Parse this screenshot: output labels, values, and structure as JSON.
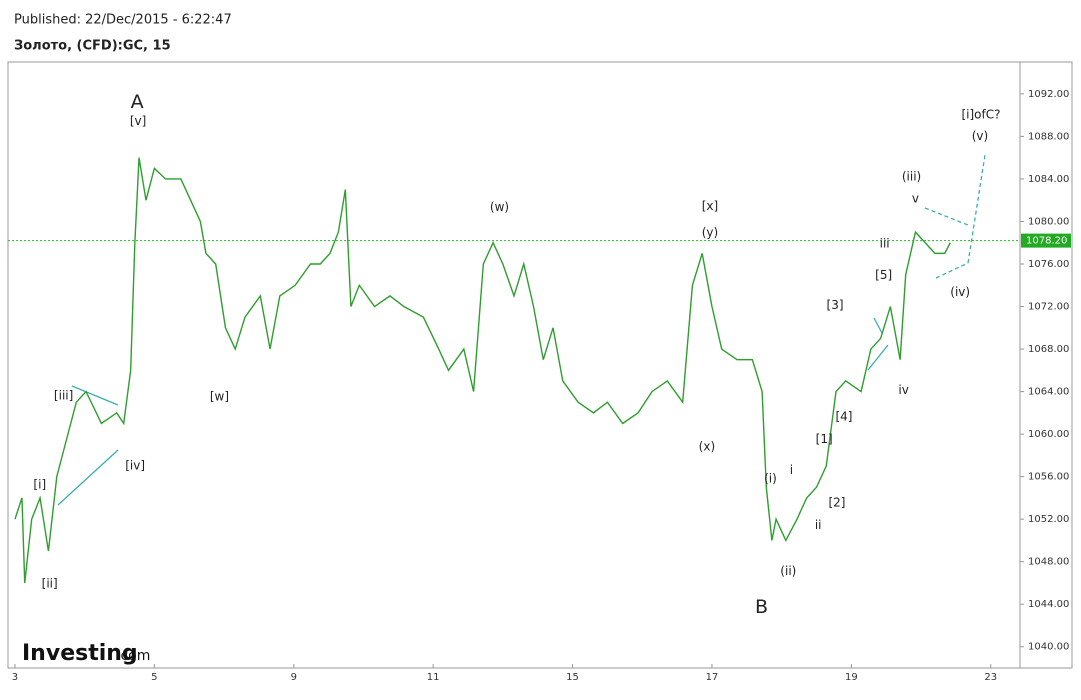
{
  "chart_data": {
    "type": "line",
    "published": "Published: 22/Dec/2015 - 6:22:47",
    "title": "Золото, (CFD):GC, 15",
    "logo": {
      "brand": "Investing",
      "suffix": ".com"
    },
    "xlim": [
      -0.05,
      7.21
    ],
    "xticks": [
      {
        "value": 0,
        "label": "3"
      },
      {
        "value": 1,
        "label": "5"
      },
      {
        "value": 2,
        "label": "9"
      },
      {
        "value": 3,
        "label": "11"
      },
      {
        "value": 4,
        "label": "15"
      },
      {
        "value": 5,
        "label": "17"
      },
      {
        "value": 6,
        "label": "19"
      },
      {
        "value": 7,
        "label": "23"
      }
    ],
    "ylim": [
      1038,
      1095
    ],
    "yticks": [
      {
        "value": 1040,
        "label": "1040.00"
      },
      {
        "value": 1044,
        "label": "1044.00"
      },
      {
        "value": 1048,
        "label": "1048.00"
      },
      {
        "value": 1052,
        "label": "1052.00"
      },
      {
        "value": 1056,
        "label": "1056.00"
      },
      {
        "value": 1060,
        "label": "1060.00"
      },
      {
        "value": 1064,
        "label": "1064.00"
      },
      {
        "value": 1068,
        "label": "1068.00"
      },
      {
        "value": 1072,
        "label": "1072.00"
      },
      {
        "value": 1076,
        "label": "1076.00"
      },
      {
        "value": 1080,
        "label": "1080.00"
      },
      {
        "value": 1084,
        "label": "1084.00"
      },
      {
        "value": 1088,
        "label": "1088.00"
      },
      {
        "value": 1092,
        "label": "1092.00"
      }
    ],
    "last_price": {
      "value": 1078.2,
      "label": "1078.20"
    },
    "series": [
      {
        "color": "#2e9e2e",
        "x": [
          0,
          0.05,
          0.07,
          0.12,
          0.18,
          0.24,
          0.3,
          0.34,
          0.44,
          0.51,
          0.62,
          0.73,
          0.78,
          0.83,
          0.86,
          0.89,
          0.94,
          1.0,
          1.08,
          1.19,
          1.26,
          1.33,
          1.37,
          1.44,
          1.51,
          1.58,
          1.65,
          1.76,
          1.83,
          1.9,
          2.01,
          2.12,
          2.19,
          2.26,
          2.32,
          2.37,
          2.41,
          2.47,
          2.58,
          2.69,
          2.79,
          2.93,
          3.04,
          3.11,
          3.22,
          3.29,
          3.36,
          3.43,
          3.5,
          3.58,
          3.65,
          3.72,
          3.79,
          3.86,
          3.93,
          4.04,
          4.15,
          4.25,
          4.36,
          4.47,
          4.57,
          4.68,
          4.79,
          4.86,
          4.93,
          5.0,
          5.07,
          5.18,
          5.29,
          5.36,
          5.39,
          5.43,
          5.46,
          5.53,
          5.61,
          5.68,
          5.75,
          5.82,
          5.89,
          5.96,
          6.07,
          6.14,
          6.21,
          6.28,
          6.35,
          6.39,
          6.46,
          6.53,
          6.6,
          6.67,
          6.71
        ],
        "values": [
          1052,
          1054,
          1046,
          1052,
          1054,
          1049,
          1056,
          1058,
          1063,
          1064,
          1061,
          1062,
          1061,
          1066,
          1078,
          1086,
          1082,
          1085,
          1084,
          1084,
          1082,
          1080,
          1077,
          1076,
          1070,
          1068,
          1071,
          1073,
          1068,
          1073,
          1074,
          1076,
          1076,
          1077,
          1079,
          1083,
          1072,
          1074,
          1072,
          1073,
          1072,
          1071,
          1068,
          1066,
          1068,
          1064,
          1076,
          1078,
          1076,
          1073,
          1076,
          1072,
          1067,
          1070,
          1065,
          1063,
          1062,
          1063,
          1061,
          1062,
          1064,
          1065,
          1063,
          1074,
          1077,
          1072,
          1068,
          1067,
          1067,
          1064,
          1055,
          1050,
          1052,
          1050,
          1052,
          1054,
          1055,
          1057,
          1064,
          1065,
          1064,
          1068,
          1069,
          1072,
          1067,
          1075,
          1079,
          1078,
          1077,
          1077,
          1078
        ]
      }
    ],
    "annotations": [
      {
        "text": "A",
        "x": 0.876,
        "y": 1091.2,
        "big": true
      },
      {
        "text": "[v]",
        "x": 0.883,
        "y": 1089.4
      },
      {
        "text": "[iii]",
        "x": 0.349,
        "y": 1063.6
      },
      {
        "text": "[i]",
        "x": 0.178,
        "y": 1055.2
      },
      {
        "text": "[ii]",
        "x": 0.249,
        "y": 1045.9
      },
      {
        "text": "[iv]",
        "x": 0.862,
        "y": 1057
      },
      {
        "text": "[w]",
        "x": 1.467,
        "y": 1063.5
      },
      {
        "text": "(w)",
        "x": 3.476,
        "y": 1081.3
      },
      {
        "text": "[x]",
        "x": 4.986,
        "y": 1081.4
      },
      {
        "text": "(y)",
        "x": 4.986,
        "y": 1078.9
      },
      {
        "text": "(x)",
        "x": 4.964,
        "y": 1058.8
      },
      {
        "text": "B",
        "x": 5.356,
        "y": 1043.7,
        "big": true
      },
      {
        "text": "(i)",
        "x": 5.42,
        "y": 1055.8
      },
      {
        "text": "i",
        "x": 5.57,
        "y": 1056.6
      },
      {
        "text": "ii",
        "x": 5.762,
        "y": 1051.4
      },
      {
        "text": "(ii)",
        "x": 5.548,
        "y": 1047.1
      },
      {
        "text": "[1]",
        "x": 5.805,
        "y": 1059.5
      },
      {
        "text": "[2]",
        "x": 5.897,
        "y": 1053.5
      },
      {
        "text": "[3]",
        "x": 5.883,
        "y": 1072.1
      },
      {
        "text": "[4]",
        "x": 5.947,
        "y": 1061.6
      },
      {
        "text": "[5]",
        "x": 6.232,
        "y": 1074.9
      },
      {
        "text": "iii",
        "x": 6.239,
        "y": 1077.9
      },
      {
        "text": "iv",
        "x": 6.375,
        "y": 1064.1
      },
      {
        "text": "(iii)",
        "x": 6.432,
        "y": 1084.2
      },
      {
        "text": "v",
        "x": 6.46,
        "y": 1082.1
      },
      {
        "text": "(iv)",
        "x": 6.781,
        "y": 1073.3
      },
      {
        "text": "(v)",
        "x": 6.923,
        "y": 1088
      },
      {
        "text": "[i]ofC?",
        "x": 6.93,
        "y": 1090
      }
    ]
  }
}
